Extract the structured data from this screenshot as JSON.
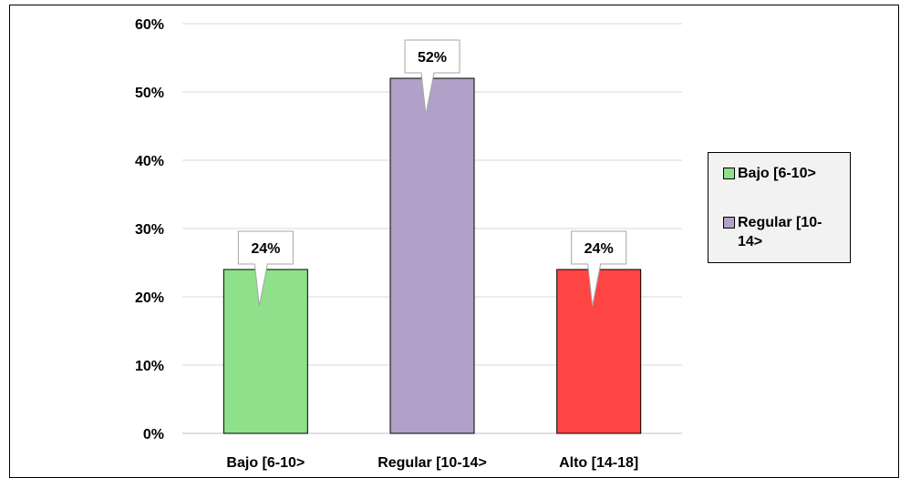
{
  "chart_data": {
    "type": "bar",
    "categories": [
      "Bajo [6-10>",
      "Regular [10-14>",
      "Alto [14-18]"
    ],
    "values": [
      24,
      52,
      24
    ],
    "value_labels": [
      "24%",
      "52%",
      "24%"
    ],
    "colors": [
      "#8ee08a",
      "#b1a0c7",
      "#ff4444"
    ],
    "yticks": [
      "0%",
      "10%",
      "20%",
      "30%",
      "40%",
      "50%",
      "60%"
    ],
    "ylim": [
      0,
      60
    ],
    "grid": true,
    "legend_position": "right",
    "title": "",
    "xlabel": "",
    "ylabel": ""
  },
  "legend": {
    "items": [
      {
        "label": "Bajo [6-10>",
        "color": "#8ee08a"
      },
      {
        "label": "Regular [10-14>",
        "color": "#b1a0c7"
      }
    ]
  }
}
